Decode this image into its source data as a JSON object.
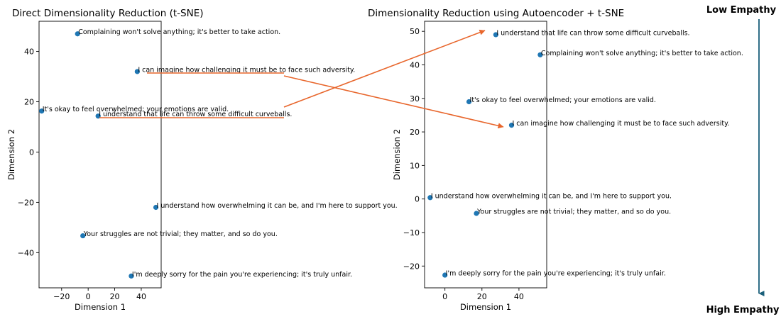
{
  "chart_data": [
    {
      "type": "scatter",
      "title": "Direct Dimensionality Reduction (t-SNE)",
      "xlabel": "Dimension 1",
      "ylabel": "Dimension 2",
      "xlim": [
        -37,
        55
      ],
      "ylim": [
        -54,
        52
      ],
      "xticks": [
        -20,
        0,
        20,
        40
      ],
      "yticks": [
        -40,
        -20,
        0,
        20,
        40
      ],
      "xtick_labels": [
        "−20",
        "0",
        "20",
        "40"
      ],
      "ytick_labels": [
        "−40",
        "−20",
        "0",
        "20",
        "40"
      ],
      "grid": false,
      "color": "#1f77b4",
      "points": [
        {
          "x": -8,
          "y": 47,
          "label": "Complaining won't solve anything; it's better to take action."
        },
        {
          "x": 37,
          "y": 32,
          "label": "I can imagine how challenging it must be to face such adversity."
        },
        {
          "x": -35,
          "y": 16.3,
          "label": "It's okay to feel overwhelmed; your emotions are valid."
        },
        {
          "x": 7.5,
          "y": 14.3,
          "label": "I understand that life can throw some difficult curveballs."
        },
        {
          "x": 51,
          "y": -22,
          "label": "I understand how overwhelming it can be, and I'm here to support you."
        },
        {
          "x": -4,
          "y": -33.3,
          "label": "Your struggles are not trivial; they matter, and so do you."
        },
        {
          "x": 32.5,
          "y": -49.3,
          "label": "I'm deeply sorry for the pain you're experiencing; it's truly unfair."
        }
      ]
    },
    {
      "type": "scatter",
      "title": "Dimensionality Reduction using Autoencoder + t-SNE",
      "xlabel": "Dimension 1",
      "ylabel": "Dimension 2",
      "xlim": [
        -11,
        55
      ],
      "ylim": [
        -26.5,
        53
      ],
      "xticks": [
        0,
        20,
        40
      ],
      "yticks": [
        -20,
        -10,
        0,
        10,
        20,
        30,
        40,
        50
      ],
      "xtick_labels": [
        "0",
        "20",
        "40"
      ],
      "ytick_labels": [
        "−20",
        "−10",
        "0",
        "10",
        "20",
        "30",
        "40",
        "50"
      ],
      "grid": false,
      "color": "#1f77b4",
      "points": [
        {
          "x": 27.5,
          "y": 49,
          "label": "I understand that life can throw some difficult curveballs."
        },
        {
          "x": 51.5,
          "y": 43,
          "label": "Complaining won't solve anything; it's better to take action."
        },
        {
          "x": 13,
          "y": 29,
          "label": "It's okay to feel overwhelmed; your emotions are valid."
        },
        {
          "x": 36,
          "y": 22,
          "label": "I can imagine how challenging it must be to face such adversity."
        },
        {
          "x": -8,
          "y": 0.4,
          "label": "I understand how overwhelming it can be, and I'm here to support you."
        },
        {
          "x": 17,
          "y": -4.3,
          "label": "Your struggles are not trivial; they matter, and so do you."
        },
        {
          "x": 0,
          "y": -22.7,
          "label": "I'm deeply sorry for the pain you're experiencing; it's truly unfair."
        }
      ]
    }
  ],
  "legend_scale": {
    "top_label": "Low Empathy",
    "bottom_label": "High Empathy",
    "top_color": "#c0440c",
    "bottom_color": "#3a7d1c",
    "arrow_color": "#1a5f7a"
  },
  "connector_color": "#e8662c"
}
